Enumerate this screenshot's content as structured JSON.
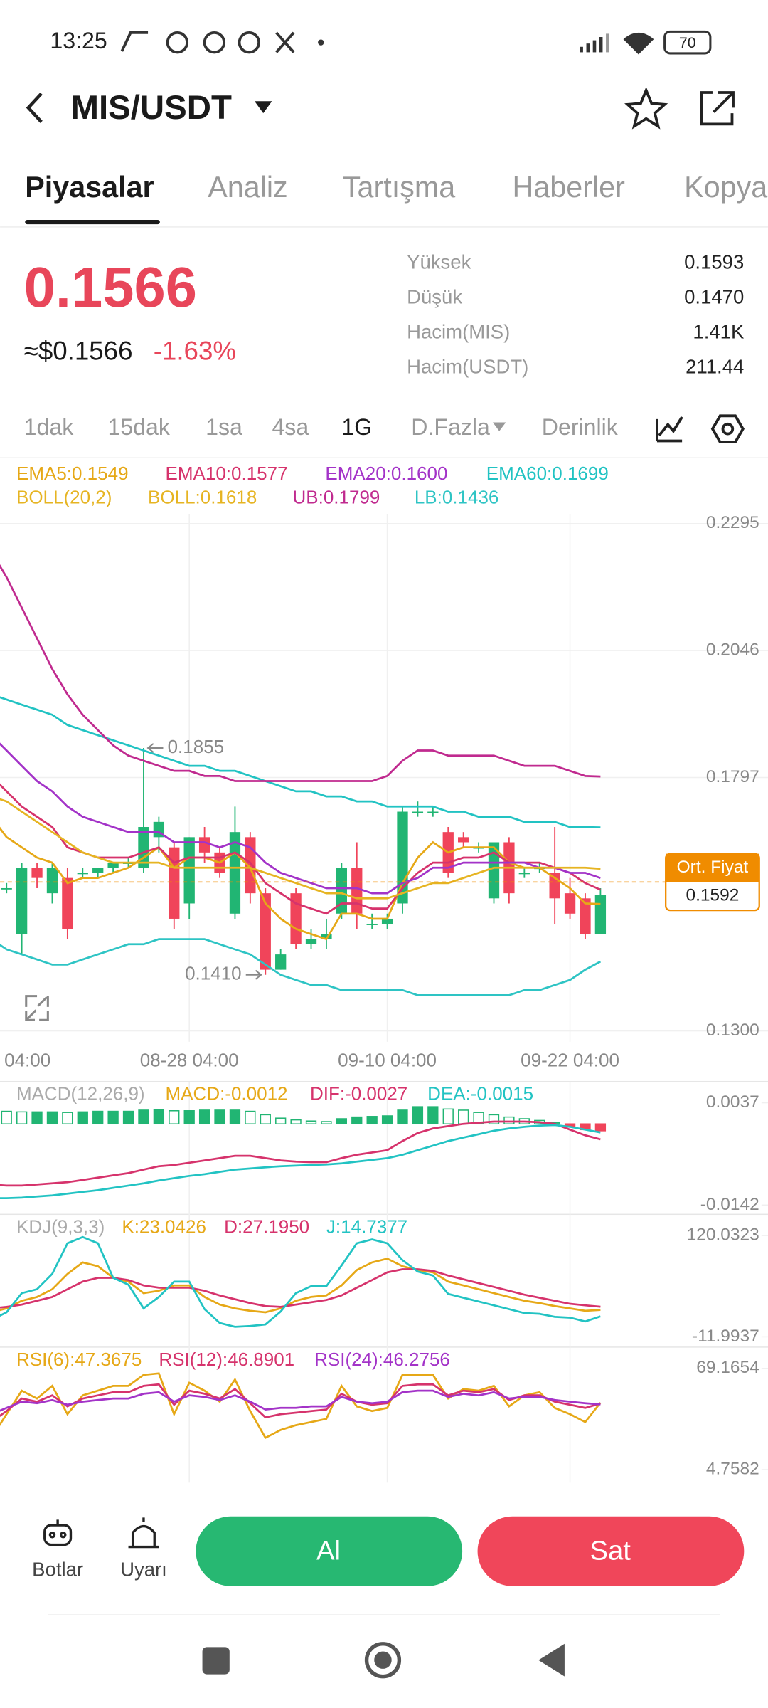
{
  "status_bar": {
    "time": "13:25",
    "battery": "70"
  },
  "header": {
    "title": "MIS/USDT"
  },
  "tabs": [
    "Piyasalar",
    "Analiz",
    "Tartışma",
    "Haberler",
    "Kopya"
  ],
  "ticker": {
    "price": "0.1566",
    "usd_price": "≈$0.1566",
    "change": "-1.63%",
    "stats": [
      [
        "Yüksek",
        "0.1593"
      ],
      [
        "Düşük",
        "0.1470"
      ],
      [
        "Hacim(MIS)",
        "1.41K"
      ],
      [
        "Hacim(USDT)",
        "211.44"
      ]
    ]
  },
  "intervals": [
    "1dak",
    "15dak",
    "1sa",
    "4sa",
    "1G",
    "D.Fazla",
    "Derinlik"
  ],
  "chart_data": [
    {
      "type": "candlestick",
      "indicator": "BOLL(20,2)",
      "up_color": "#21b573",
      "down_color": "#f0445a",
      "categories": [
        "04:00",
        null,
        null,
        null,
        null,
        null,
        null,
        null,
        null,
        null,
        null,
        null,
        null,
        "08-28 04:00",
        null,
        null,
        null,
        null,
        null,
        null,
        null,
        null,
        null,
        null,
        null,
        null,
        "09-10 04:00",
        null,
        null,
        null,
        null,
        null,
        null,
        null,
        null,
        null,
        null,
        null,
        "09-22 04:00",
        null,
        null
      ],
      "open": [
        0.158,
        0.158,
        0.149,
        0.162,
        0.157,
        0.16,
        0.161,
        0.161,
        0.162,
        0.163,
        0.162,
        0.168,
        0.166,
        0.155,
        0.168,
        0.165,
        0.153,
        0.168,
        0.157,
        0.142,
        0.157,
        0.147,
        0.148,
        0.153,
        0.162,
        0.151,
        0.151,
        0.155,
        0.173,
        0.173,
        0.169,
        0.168,
        0.166,
        0.156,
        0.167,
        0.161,
        0.162,
        0.161,
        0.157,
        0.156,
        0.149
      ],
      "high": [
        0.159,
        0.159,
        0.163,
        0.163,
        0.163,
        0.162,
        0.162,
        0.162,
        0.163,
        0.164,
        0.1855,
        0.172,
        0.167,
        0.168,
        0.17,
        0.166,
        0.174,
        0.169,
        0.158,
        0.146,
        0.158,
        0.15,
        0.152,
        0.163,
        0.167,
        0.153,
        0.153,
        0.174,
        0.175,
        0.174,
        0.17,
        0.169,
        0.167,
        0.167,
        0.168,
        0.162,
        0.163,
        0.17,
        0.16,
        0.157,
        0.158
      ],
      "low": [
        0.157,
        0.157,
        0.145,
        0.158,
        0.155,
        0.148,
        0.16,
        0.16,
        0.161,
        0.162,
        0.161,
        0.165,
        0.15,
        0.152,
        0.163,
        0.16,
        0.152,
        0.155,
        0.141,
        0.142,
        0.146,
        0.146,
        0.146,
        0.152,
        0.15,
        0.15,
        0.15,
        0.153,
        0.172,
        0.172,
        0.16,
        0.166,
        0.165,
        0.155,
        0.155,
        0.16,
        0.161,
        0.151,
        0.152,
        0.148,
        0.149
      ],
      "close": [
        0.158,
        0.158,
        0.162,
        0.16,
        0.162,
        0.15,
        0.161,
        0.162,
        0.163,
        0.163,
        0.17,
        0.171,
        0.152,
        0.168,
        0.165,
        0.161,
        0.169,
        0.157,
        0.142,
        0.145,
        0.147,
        0.148,
        0.149,
        0.162,
        0.153,
        0.151,
        0.152,
        0.173,
        0.173,
        0.173,
        0.161,
        0.167,
        0.166,
        0.167,
        0.157,
        0.161,
        0.162,
        0.156,
        0.153,
        0.149,
        0.1566
      ],
      "series": [
        {
          "name": "EMA5:0.1549",
          "color": "#e6a817",
          "values": [
            0.172,
            0.168,
            0.166,
            0.164,
            0.163,
            0.159,
            0.16,
            0.16,
            0.161,
            0.162,
            0.164,
            0.166,
            0.162,
            0.164,
            0.164,
            0.163,
            0.165,
            0.162,
            0.155,
            0.152,
            0.15,
            0.149,
            0.148,
            0.153,
            0.153,
            0.152,
            0.152,
            0.159,
            0.164,
            0.167,
            0.165,
            0.166,
            0.166,
            0.166,
            0.163,
            0.162,
            0.162,
            0.16,
            0.158,
            0.155,
            0.1549
          ]
        },
        {
          "name": "EMA10:0.1577",
          "color": "#d6336c",
          "values": [
            0.18,
            0.177,
            0.174,
            0.172,
            0.17,
            0.166,
            0.165,
            0.164,
            0.164,
            0.164,
            0.165,
            0.166,
            0.163,
            0.164,
            0.164,
            0.164,
            0.165,
            0.163,
            0.159,
            0.157,
            0.155,
            0.154,
            0.153,
            0.155,
            0.155,
            0.154,
            0.154,
            0.158,
            0.161,
            0.163,
            0.163,
            0.164,
            0.164,
            0.165,
            0.163,
            0.163,
            0.163,
            0.162,
            0.161,
            0.159,
            0.1577
          ]
        },
        {
          "name": "EMA20:0.1600",
          "color": "#a333c8",
          "values": [
            0.188,
            0.185,
            0.182,
            0.179,
            0.177,
            0.174,
            0.172,
            0.171,
            0.17,
            0.169,
            0.169,
            0.169,
            0.167,
            0.167,
            0.167,
            0.166,
            0.167,
            0.166,
            0.163,
            0.161,
            0.16,
            0.159,
            0.158,
            0.158,
            0.158,
            0.157,
            0.157,
            0.159,
            0.16,
            0.162,
            0.162,
            0.163,
            0.163,
            0.163,
            0.163,
            0.163,
            0.162,
            0.162,
            0.161,
            0.161,
            0.16
          ]
        },
        {
          "name": "EMA60:0.1699",
          "color": "#22c3c3",
          "values": [
            0.196,
            0.195,
            0.194,
            0.193,
            0.192,
            0.19,
            0.189,
            0.188,
            0.187,
            0.186,
            0.185,
            0.184,
            0.183,
            0.182,
            0.182,
            0.181,
            0.181,
            0.18,
            0.179,
            0.178,
            0.177,
            0.177,
            0.176,
            0.176,
            0.175,
            0.175,
            0.174,
            0.174,
            0.174,
            0.174,
            0.173,
            0.173,
            0.172,
            0.172,
            0.172,
            0.171,
            0.171,
            0.171,
            0.17,
            0.17,
            0.1699
          ]
        },
        {
          "name": "BOLL:0.1618",
          "color": "#e6b422",
          "values": [
            0.176,
            0.175,
            0.173,
            0.171,
            0.169,
            0.167,
            0.165,
            0.164,
            0.163,
            0.163,
            0.163,
            0.163,
            0.162,
            0.162,
            0.162,
            0.162,
            0.162,
            0.162,
            0.161,
            0.16,
            0.159,
            0.158,
            0.157,
            0.157,
            0.156,
            0.156,
            0.156,
            0.157,
            0.158,
            0.159,
            0.159,
            0.16,
            0.161,
            0.162,
            0.162,
            0.162,
            0.162,
            0.162,
            0.162,
            0.162,
            0.1618
          ]
        },
        {
          "name": "UB:0.1799",
          "color": "#c02a8f",
          "values": [
            0.224,
            0.219,
            0.213,
            0.207,
            0.201,
            0.196,
            0.192,
            0.189,
            0.186,
            0.184,
            0.183,
            0.182,
            0.181,
            0.181,
            0.18,
            0.18,
            0.179,
            0.179,
            0.179,
            0.179,
            0.179,
            0.179,
            0.179,
            0.179,
            0.179,
            0.179,
            0.18,
            0.183,
            0.185,
            0.185,
            0.184,
            0.184,
            0.184,
            0.184,
            0.183,
            0.182,
            0.182,
            0.182,
            0.181,
            0.18,
            0.1799
          ]
        },
        {
          "name": "LB:0.1436",
          "color": "#2ec4c4",
          "values": [
            0.148,
            0.146,
            0.145,
            0.144,
            0.143,
            0.143,
            0.144,
            0.145,
            0.146,
            0.147,
            0.147,
            0.148,
            0.148,
            0.148,
            0.148,
            0.147,
            0.146,
            0.145,
            0.143,
            0.141,
            0.14,
            0.139,
            0.139,
            0.138,
            0.138,
            0.138,
            0.138,
            0.138,
            0.137,
            0.137,
            0.137,
            0.137,
            0.137,
            0.137,
            0.137,
            0.138,
            0.138,
            0.139,
            0.14,
            0.142,
            0.1436
          ]
        }
      ],
      "extreme_labels": {
        "high": "0.1855",
        "low": "0.1410"
      },
      "avg_price": {
        "label": "Ort. Fiyat",
        "value": 0.1592,
        "color": "#f08c00"
      },
      "ylim": [
        0.13,
        0.2295
      ],
      "yticks": [
        {
          "value": 0.13,
          "label": "0.1300"
        },
        0.1797,
        0.2046,
        0.2295
      ],
      "grid": true
    },
    {
      "type": "macd",
      "title": "MACD(12,26,9)",
      "up_color": "#21b573",
      "down_color": "#f0445a",
      "ylim": [
        -0.0142,
        0.0037
      ],
      "yticks": [
        -0.0142,
        0.0037
      ],
      "series": [
        {
          "name": "MACD:-0.0012",
          "type": "bar",
          "color": "#e6a817",
          "values": [
            0.0024,
            0.0022,
            0.0021,
            0.0021,
            0.0021,
            0.002,
            0.0021,
            0.0022,
            0.0022,
            0.0022,
            0.0024,
            0.0025,
            0.0023,
            0.0023,
            0.0024,
            0.0024,
            0.0024,
            0.0022,
            0.0016,
            0.001,
            0.0007,
            0.0005,
            0.0004,
            0.0009,
            0.0012,
            0.0013,
            0.0014,
            0.0024,
            0.003,
            0.003,
            0.0026,
            0.0024,
            0.002,
            0.0016,
            0.0012,
            0.0009,
            0.0006,
            0.0002,
            -0.0005,
            -0.001,
            -0.0012
          ]
        },
        {
          "name": "DIF:-0.0027",
          "type": "line",
          "color": "#d6336c",
          "values": [
            -0.0106,
            -0.0108,
            -0.0108,
            -0.0106,
            -0.0104,
            -0.0102,
            -0.0098,
            -0.0094,
            -0.009,
            -0.0086,
            -0.008,
            -0.0074,
            -0.0072,
            -0.0068,
            -0.0064,
            -0.006,
            -0.0056,
            -0.0056,
            -0.006,
            -0.0064,
            -0.0066,
            -0.0067,
            -0.0067,
            -0.006,
            -0.0054,
            -0.005,
            -0.0046,
            -0.003,
            -0.0016,
            -0.0008,
            -0.0004,
            0.0,
            0.0002,
            0.0004,
            0.0004,
            0.0004,
            0.0003,
            0.0,
            -0.001,
            -0.002,
            -0.0027
          ]
        },
        {
          "name": "DEA:-0.0015",
          "type": "line",
          "color": "#22c3c3",
          "values": [
            -0.013,
            -0.013,
            -0.0129,
            -0.0127,
            -0.0125,
            -0.0122,
            -0.0119,
            -0.0116,
            -0.0112,
            -0.0108,
            -0.0104,
            -0.0099,
            -0.0095,
            -0.0091,
            -0.0088,
            -0.0084,
            -0.008,
            -0.0078,
            -0.0076,
            -0.0074,
            -0.0073,
            -0.0072,
            -0.0071,
            -0.0069,
            -0.0066,
            -0.0063,
            -0.006,
            -0.0054,
            -0.0046,
            -0.0038,
            -0.003,
            -0.0024,
            -0.0018,
            -0.0012,
            -0.0008,
            -0.0005,
            -0.0003,
            -0.0002,
            -0.0005,
            -0.001,
            -0.0015
          ]
        }
      ]
    },
    {
      "type": "line",
      "title": "KDJ(9,3,3)",
      "ylim": [
        -11.9937,
        120.0323
      ],
      "yticks": [
        -11.9937,
        120.0323
      ],
      "series": [
        {
          "name": "K:23.0426",
          "color": "#e6a817",
          "values": [
            20,
            25,
            35,
            40,
            50,
            70,
            85,
            80,
            65,
            60,
            45,
            48,
            55,
            55,
            40,
            30,
            25,
            22,
            20,
            25,
            35,
            40,
            42,
            55,
            75,
            85,
            90,
            80,
            75,
            72,
            60,
            55,
            50,
            45,
            40,
            35,
            32,
            28,
            25,
            22,
            23.0426
          ]
        },
        {
          "name": "D:27.1950",
          "color": "#d6336c",
          "values": [
            25,
            27,
            30,
            35,
            40,
            50,
            60,
            65,
            65,
            62,
            55,
            52,
            52,
            52,
            48,
            42,
            37,
            32,
            28,
            27,
            30,
            33,
            36,
            42,
            52,
            62,
            72,
            76,
            76,
            74,
            68,
            63,
            58,
            53,
            48,
            43,
            39,
            35,
            31,
            29,
            27.195
          ]
        },
        {
          "name": "J:14.7377",
          "color": "#22c3c3",
          "values": [
            10,
            20,
            45,
            50,
            70,
            110,
            118,
            110,
            65,
            56,
            25,
            40,
            60,
            60,
            24,
            6,
            1,
            2,
            4,
            21,
            45,
            54,
            54,
            81,
            110,
            115,
            110,
            88,
            73,
            68,
            44,
            39,
            34,
            29,
            24,
            19,
            18,
            14,
            13,
            8,
            14.7377
          ]
        }
      ]
    },
    {
      "type": "line",
      "ylim": [
        4.7582,
        69.1654
      ],
      "yticks": [
        4.7582,
        69.1654
      ],
      "series": [
        {
          "name": "RSI(6):47.3675",
          "color": "#e6a817",
          "values": [
            25,
            40,
            55,
            50,
            58,
            40,
            52,
            55,
            58,
            58,
            65,
            66,
            40,
            60,
            55,
            48,
            62,
            42,
            25,
            30,
            33,
            35,
            37,
            58,
            45,
            42,
            44,
            65,
            65,
            65,
            50,
            56,
            55,
            58,
            45,
            52,
            54,
            44,
            40,
            35,
            47.3675
          ]
        },
        {
          "name": "RSI(12):46.8901",
          "color": "#d6336c",
          "values": [
            35,
            42,
            50,
            48,
            52,
            45,
            50,
            52,
            54,
            54,
            58,
            59,
            46,
            55,
            53,
            50,
            56,
            47,
            38,
            40,
            41,
            42,
            43,
            53,
            48,
            46,
            47,
            58,
            59,
            59,
            52,
            55,
            54,
            56,
            49,
            52,
            52,
            48,
            46,
            44,
            46.8901
          ]
        },
        {
          "name": "RSI(24):46.2756",
          "color": "#a333c8",
          "values": [
            40,
            44,
            48,
            47,
            49,
            46,
            48,
            49,
            50,
            50,
            53,
            54,
            48,
            52,
            51,
            49,
            52,
            48,
            43,
            44,
            44,
            45,
            45,
            51,
            48,
            47,
            48,
            54,
            55,
            55,
            51,
            53,
            52,
            54,
            50,
            51,
            51,
            49,
            48,
            47,
            46.2756
          ]
        }
      ]
    }
  ],
  "actions": {
    "bots": "Botlar",
    "alerts": "Uyarı",
    "buy": "Al",
    "sell": "Sat"
  }
}
